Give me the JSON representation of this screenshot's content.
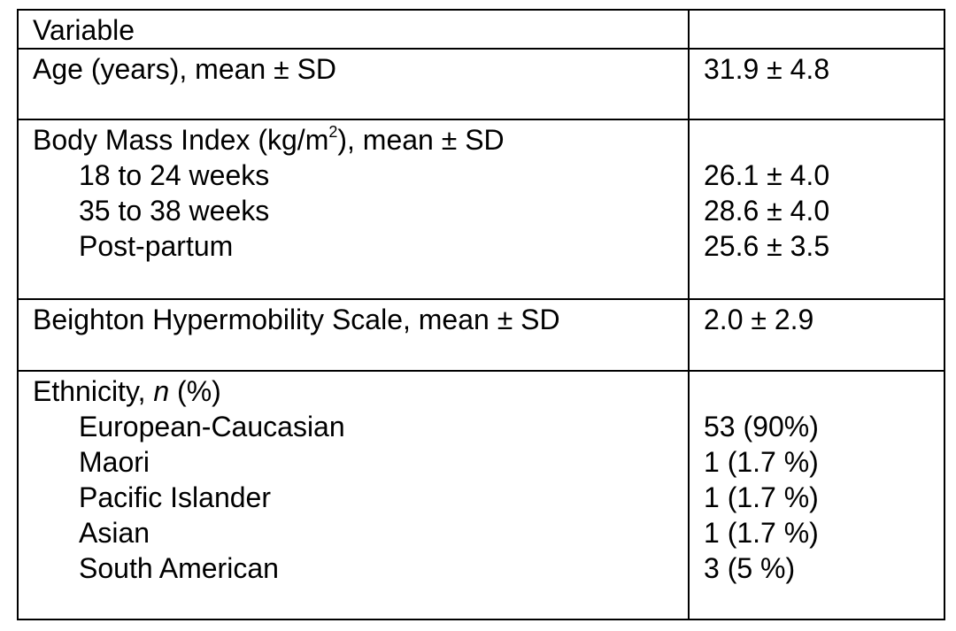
{
  "table": {
    "header": {
      "variable": "Variable",
      "value": ""
    },
    "age": {
      "label": "Age (years), mean ± SD",
      "value": "31.9 ± 4.8"
    },
    "bmi": {
      "label_prefix": "Body Mass Index (kg/m",
      "label_sup": "2",
      "label_suffix": "), mean ± SD",
      "rows": [
        {
          "label": "18 to 24 weeks",
          "value": "26.1 ± 4.0"
        },
        {
          "label": "35 to 38 weeks",
          "value": "28.6 ± 4.0"
        },
        {
          "label": "Post-partum",
          "value": "25.6 ± 3.5"
        }
      ]
    },
    "beighton": {
      "label": "Beighton Hypermobility Scale, mean ± SD",
      "value": "2.0 ± 2.9"
    },
    "ethnicity": {
      "label_prefix": "Ethnicity, ",
      "label_italic": "n",
      "label_suffix": " (%)",
      "rows": [
        {
          "label": "European-Caucasian",
          "value": "53 (90%)"
        },
        {
          "label": "Maori",
          "value": "1 (1.7 %)"
        },
        {
          "label": "Pacific Islander",
          "value": "1 (1.7 %)"
        },
        {
          "label": "Asian",
          "value": "1 (1.7 %)"
        },
        {
          "label": "South American",
          "value": "3 (5 %)"
        }
      ]
    }
  }
}
